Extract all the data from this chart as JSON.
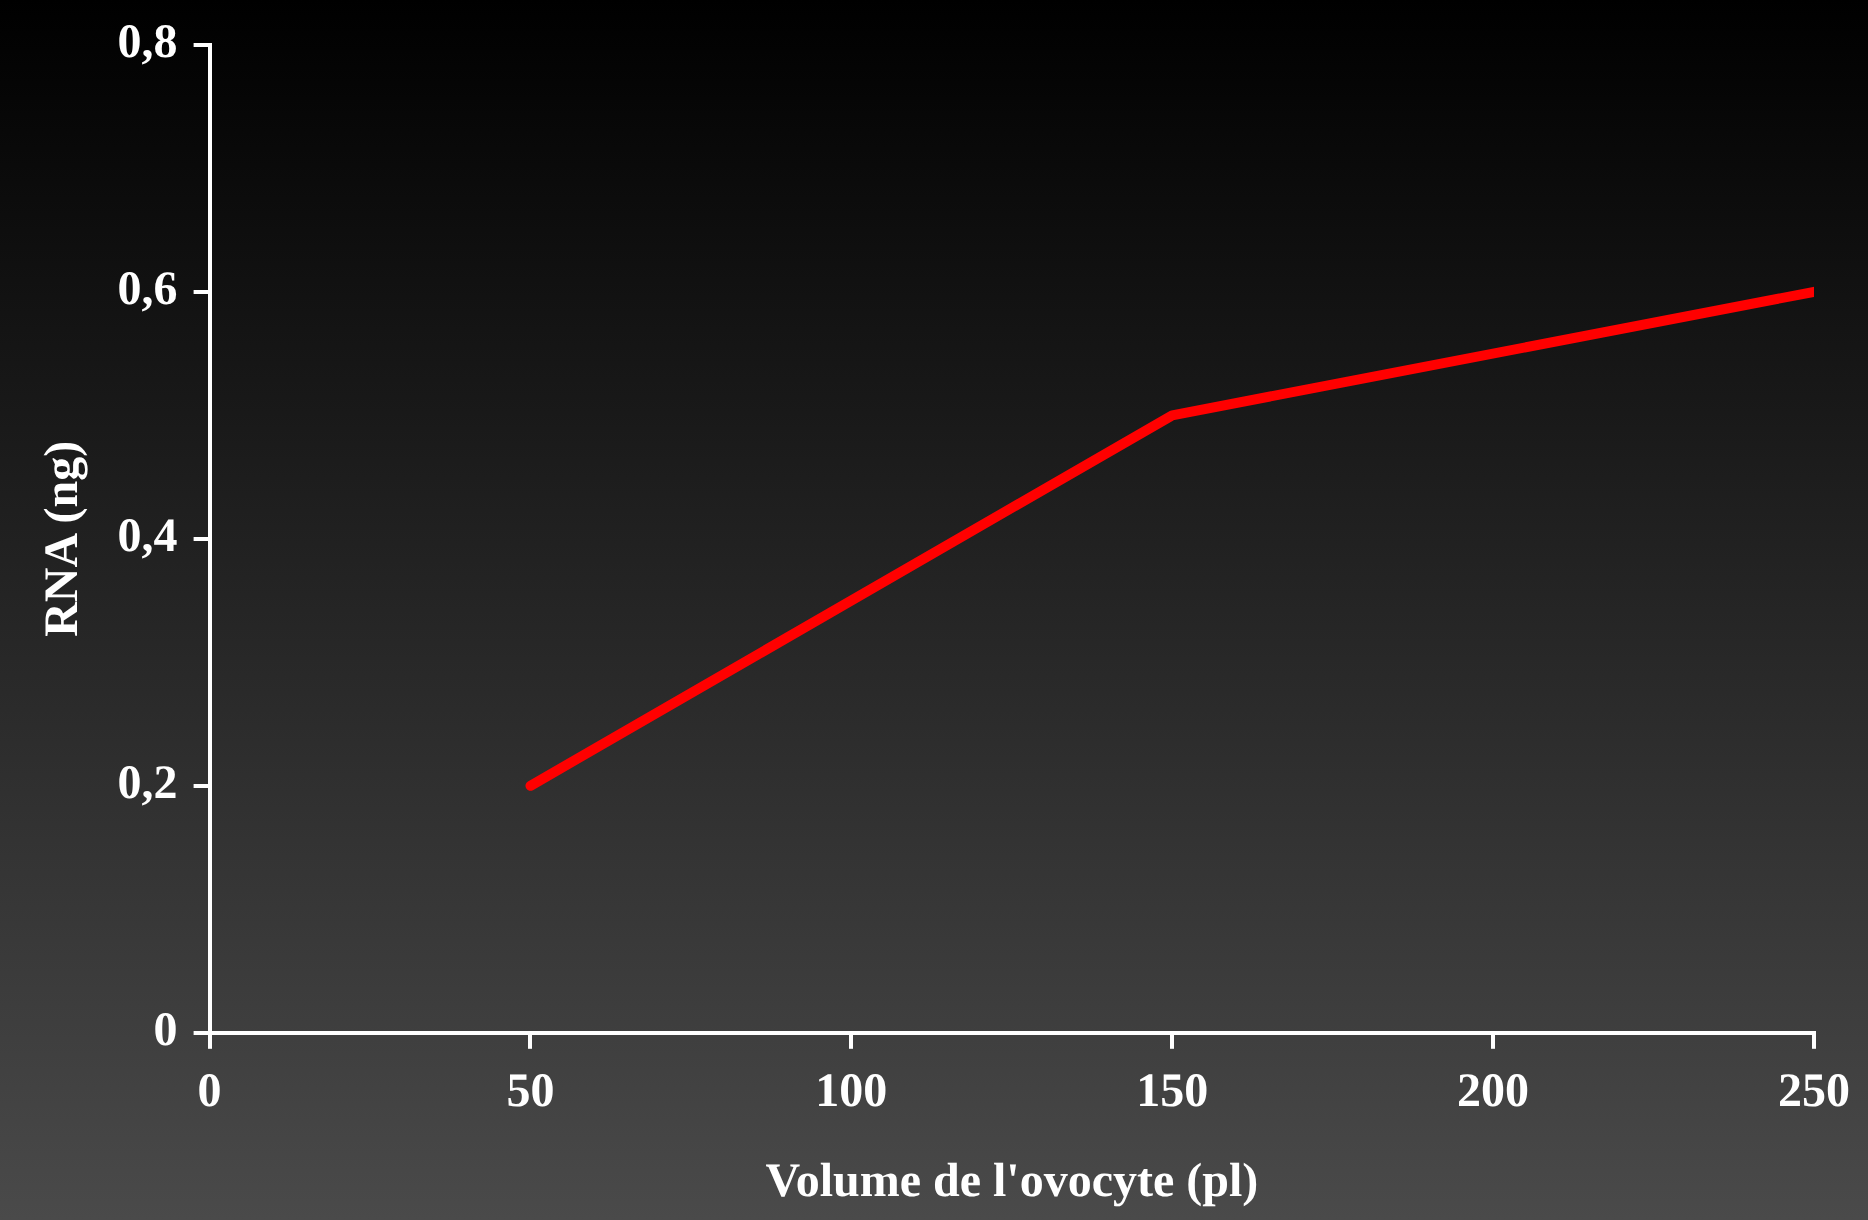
{
  "chart_data": {
    "type": "line",
    "xlabel": "Volume de l'ovocyte (pl)",
    "ylabel": "RNA (ng)",
    "x": [
      50,
      150,
      250
    ],
    "series": [
      {
        "color": "#ff0000",
        "values": [
          0.2,
          0.5,
          0.6
        ]
      }
    ],
    "xlim": [
      0,
      250
    ],
    "xticks": [
      0,
      50,
      100,
      150,
      200,
      250
    ],
    "ylim": [
      0,
      0.8
    ],
    "yticks": [
      0,
      {
        "value": 0.2,
        "label": "0,2"
      },
      {
        "value": 0.4,
        "label": "0,4"
      },
      {
        "value": 0.6,
        "label": "0,6"
      },
      {
        "value": 0.8,
        "label": "0,8"
      }
    ],
    "grid": false
  }
}
